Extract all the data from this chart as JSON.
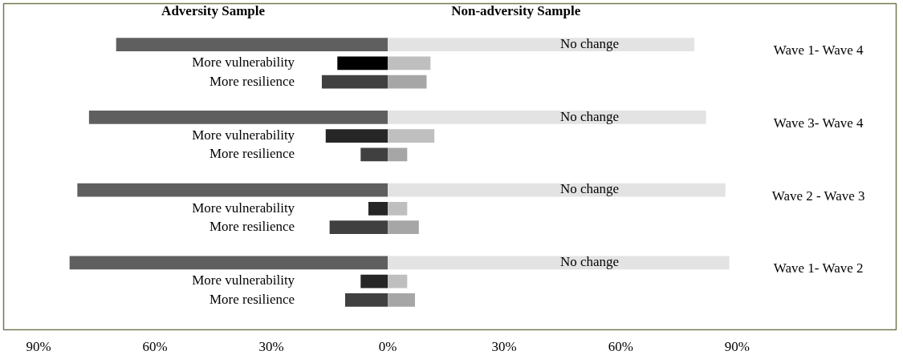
{
  "chart_data": {
    "type": "bar",
    "orientation": "horizontal",
    "stacked": true,
    "legend": false,
    "grid": false,
    "categories": [
      "No change",
      "More vulnerability",
      "More resilience",
      "No change",
      "More vulnerability",
      "More resilience",
      "No change",
      "More vulnerability",
      "More resilience",
      "No change",
      "More vulnerability",
      "More resilience"
    ],
    "series": [
      {
        "name": "Adversity Sample",
        "values": [
          -70,
          -13,
          -17,
          -77,
          -16,
          -7,
          -80,
          -5,
          -15,
          -82,
          -7,
          -11
        ],
        "colors": [
          "#5f5f5f",
          "#000000",
          "#404040",
          "#5f5f5f",
          "#262626",
          "#404040",
          "#5f5f5f",
          "#262626",
          "#404040",
          "#5f5f5f",
          "#262626",
          "#404040"
        ]
      },
      {
        "name": "Non-adversity Sample",
        "values": [
          79,
          11,
          10,
          82,
          12,
          5,
          87,
          5,
          8,
          88,
          5,
          7
        ],
        "colors": [
          "#e3e3e3",
          "#bfbfbf",
          "#a6a6a6",
          "#e3e3e3",
          "#bfbfbf",
          "#a6a6a6",
          "#e3e3e3",
          "#bfbfbf",
          "#a6a6a6",
          "#e3e3e3",
          "#bfbfbf",
          "#a6a6a6"
        ]
      }
    ],
    "annotations": [
      "Wave 1- Wave 4",
      "Wave 3- Wave 4",
      "Wave 2 - Wave 3",
      "Wave 1- Wave 2"
    ],
    "xlim": [
      -99,
      131
    ],
    "xticks": [
      {
        "value": -90,
        "label": "90%"
      },
      {
        "value": -60,
        "label": "60%"
      },
      {
        "value": -30,
        "label": "30%"
      },
      {
        "value": 0,
        "label": "0%"
      },
      {
        "value": 30,
        "label": "30%"
      },
      {
        "value": 60,
        "label": "60%"
      },
      {
        "value": 90,
        "label": "90%"
      }
    ]
  }
}
